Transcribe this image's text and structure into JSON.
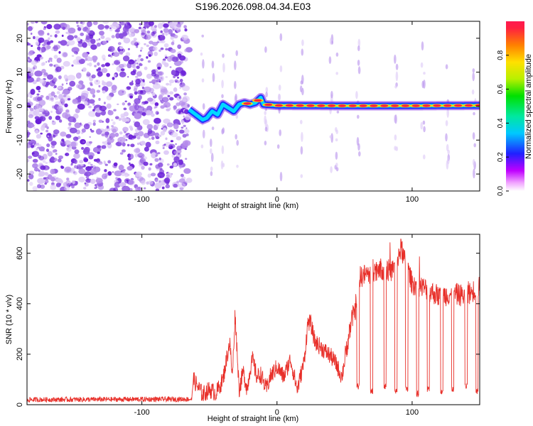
{
  "title": "S196.2026.098.04.34.E03",
  "colors": {
    "trace": "#e8302a",
    "speckle": [
      "#dcc8f6",
      "#b891ec",
      "#8a4fe0",
      "#6a1fd8"
    ]
  },
  "chart_data": [
    {
      "type": "heatmap",
      "xlabel": "Height of straight line (km)",
      "ylabel": "Frequency (Hz)",
      "xlim": [
        -185,
        150
      ],
      "ylim": [
        -25,
        25
      ],
      "xticks": [
        -100,
        0,
        100
      ],
      "yticks": [
        -20,
        -10,
        0,
        10,
        20
      ],
      "noise_region_x": [
        -185,
        -65
      ],
      "signal_track": {
        "x": [
          -65,
          -60,
          -55,
          -52,
          -48,
          -44,
          -40,
          -36,
          -32,
          -28,
          -24,
          -20,
          -16,
          -12,
          -10,
          0,
          50,
          100,
          150
        ],
        "freq": [
          -1,
          -2.5,
          -4,
          -3.5,
          -1.5,
          -2.5,
          0.5,
          -0.5,
          -1.5,
          0.5,
          1.0,
          0.5,
          1.0,
          2.5,
          0.5,
          0.2,
          0.1,
          0.1,
          0.2
        ]
      },
      "colorbar": {
        "label": "Normalized spectral amplitude",
        "range": [
          0.0,
          1.0
        ],
        "ticks": [
          "0.0",
          "0.2",
          "0.4",
          "0.6",
          "0.8"
        ]
      }
    },
    {
      "type": "line",
      "xlabel": "Height of straight line (km)",
      "ylabel": "SNR (10 * v/v)",
      "xlim": [
        -185,
        150
      ],
      "ylim": [
        0,
        675
      ],
      "xticks": [
        -100,
        0,
        100
      ],
      "yticks": [
        0,
        200,
        400,
        600
      ],
      "series": [
        {
          "name": "SNR",
          "x": [
            -185,
            -63,
            -62,
            -55,
            -50,
            -45,
            -40,
            -35,
            -33,
            -31,
            -28,
            -25,
            -22,
            -20,
            -18,
            -15,
            -12,
            -8,
            -5,
            0,
            5,
            10,
            15,
            20,
            23,
            25,
            28,
            32,
            36,
            40,
            44,
            48,
            52,
            55,
            58,
            60,
            63,
            68,
            75,
            85,
            92,
            95,
            100,
            110,
            120,
            130,
            140,
            150
          ],
          "y": [
            20,
            22,
            100,
            40,
            60,
            45,
            100,
            250,
            110,
            360,
            60,
            130,
            60,
            140,
            180,
            110,
            120,
            60,
            110,
            150,
            110,
            180,
            60,
            170,
            330,
            320,
            250,
            230,
            210,
            190,
            160,
            110,
            240,
            330,
            380,
            500,
            510,
            520,
            540,
            530,
            620,
            560,
            480,
            460,
            430,
            440,
            430,
            470
          ]
        }
      ],
      "drops": {
        "x": [
          60,
          70,
          80,
          88,
          96,
          104,
          112,
          122,
          130,
          140,
          148
        ],
        "y": [
          60,
          40,
          60,
          40,
          50,
          30,
          50,
          40,
          50,
          60,
          40
        ]
      }
    }
  ]
}
